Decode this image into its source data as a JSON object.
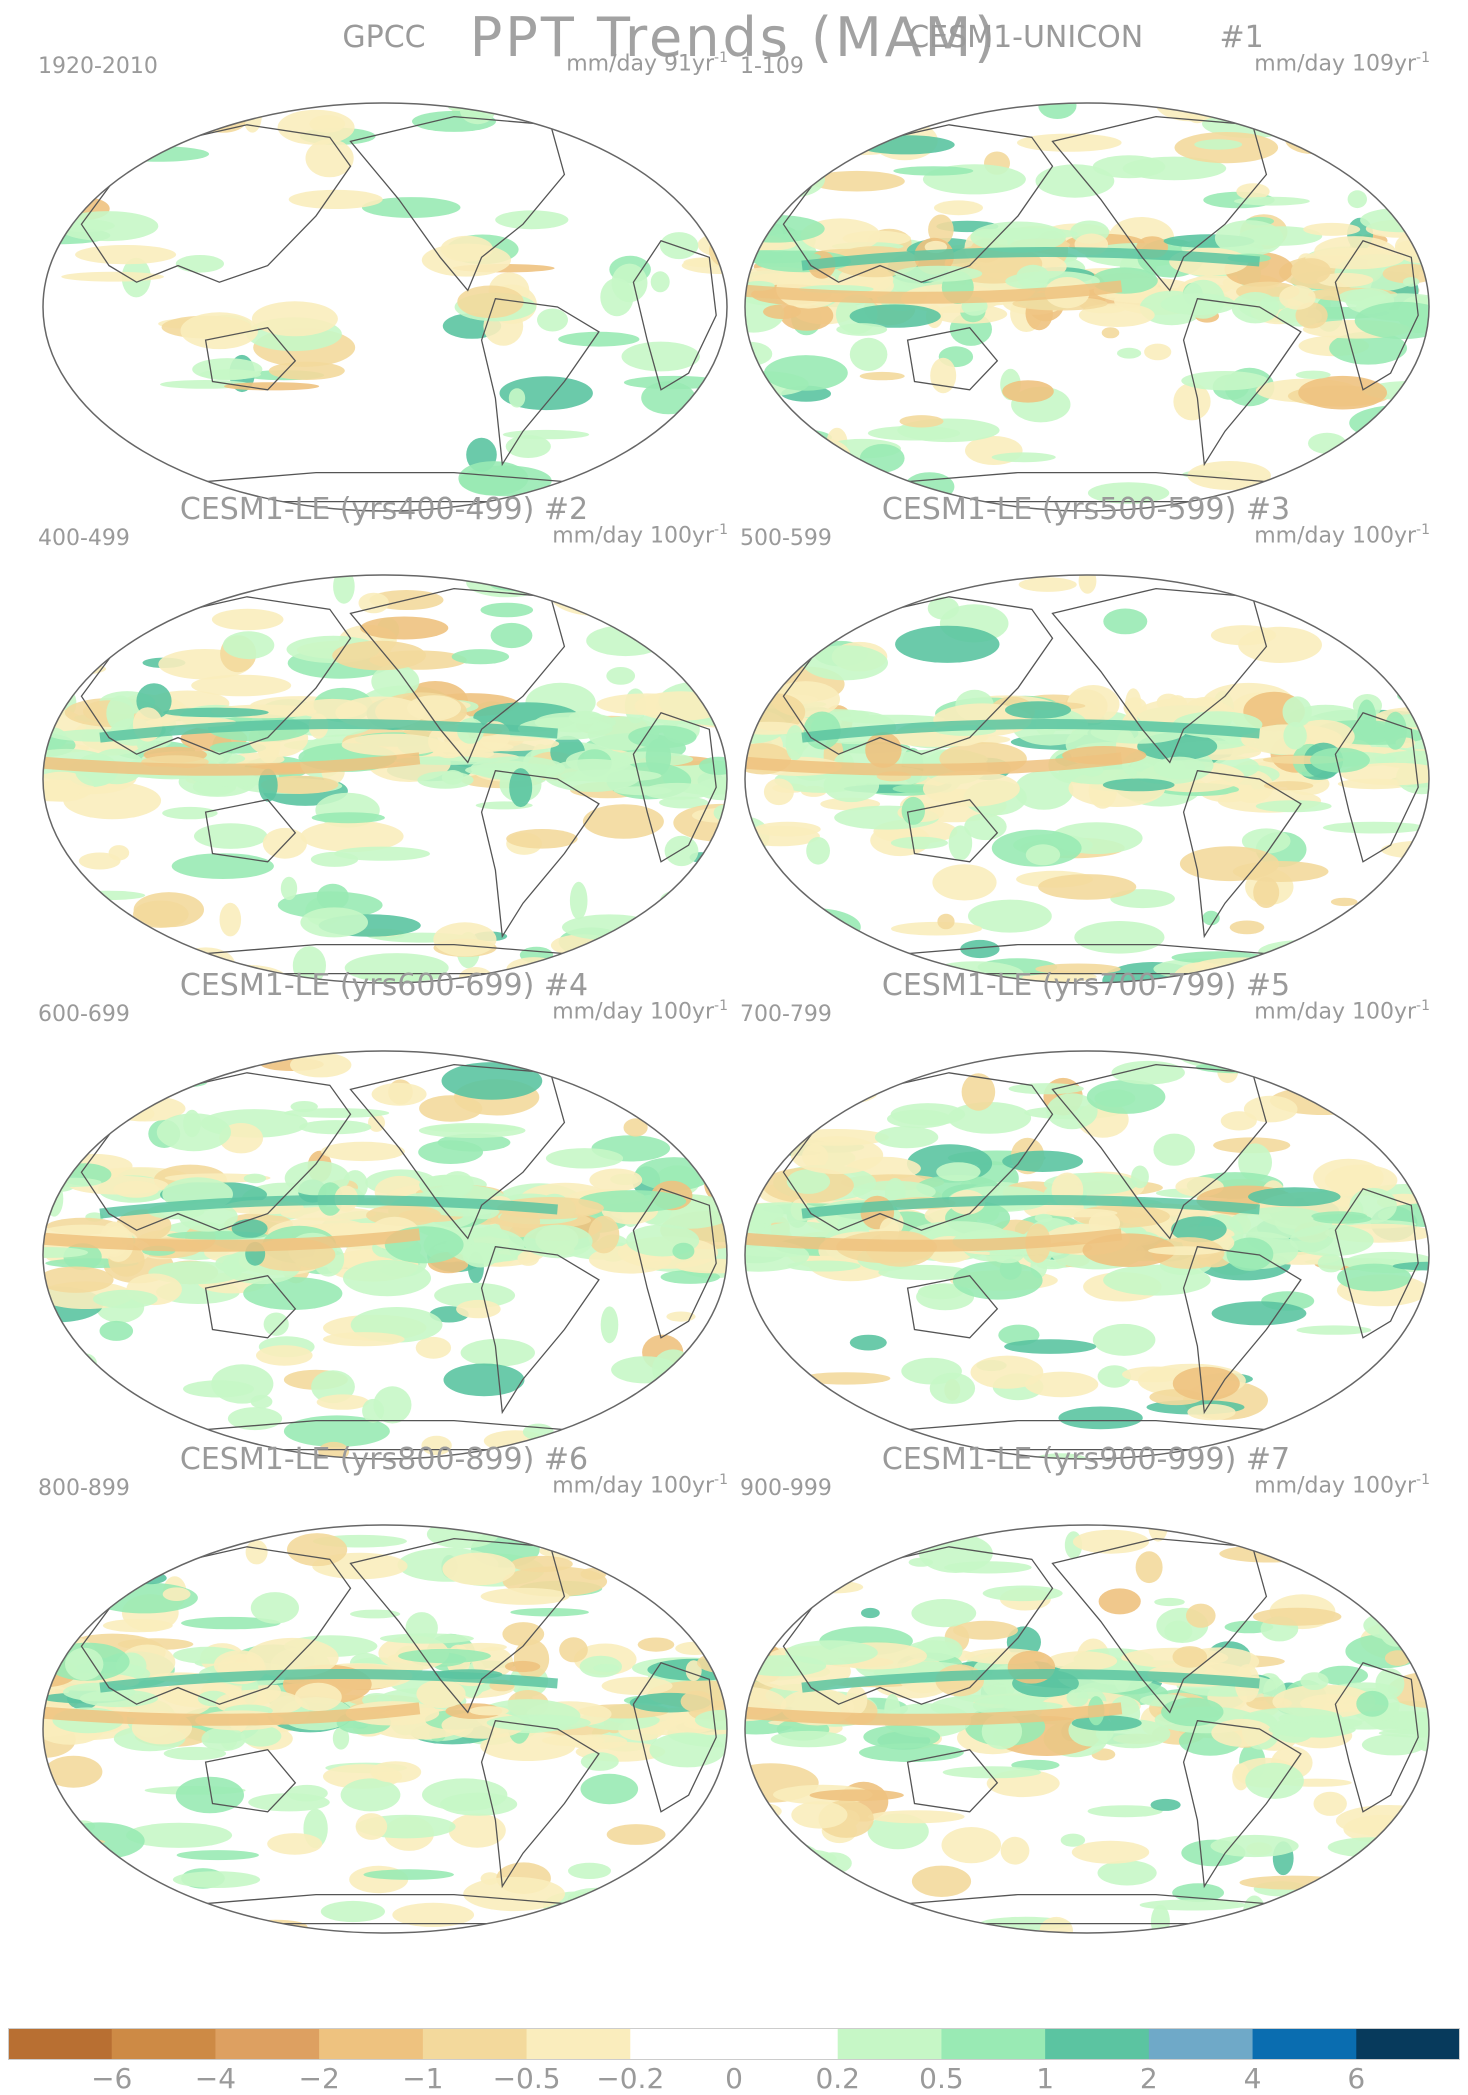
{
  "title": "PPT Trends (MAM)",
  "units_label": "mm/day",
  "panels": [
    {
      "title": "GPCC",
      "run_tag": "",
      "years": "1920-2010",
      "period": "91yr",
      "period_exp": "-1",
      "kind": "obs"
    },
    {
      "title": "CESM1-UNICON",
      "run_tag": "#1",
      "years": "1-109",
      "period": "109yr",
      "period_exp": "-1",
      "kind": "model"
    },
    {
      "title": "CESM1-LE (yrs400-499)",
      "run_tag": "#2",
      "years": "400-499",
      "period": "100yr",
      "period_exp": "-1",
      "kind": "model"
    },
    {
      "title": "CESM1-LE (yrs500-599)",
      "run_tag": "#3",
      "years": "500-599",
      "period": "100yr",
      "period_exp": "-1",
      "kind": "model"
    },
    {
      "title": "CESM1-LE (yrs600-699)",
      "run_tag": "#4",
      "years": "600-699",
      "period": "100yr",
      "period_exp": "-1",
      "kind": "model"
    },
    {
      "title": "CESM1-LE (yrs700-799)",
      "run_tag": "#5",
      "years": "700-799",
      "period": "100yr",
      "period_exp": "-1",
      "kind": "model"
    },
    {
      "title": "CESM1-LE (yrs800-899)",
      "run_tag": "#6",
      "years": "800-899",
      "period": "100yr",
      "period_exp": "-1",
      "kind": "model"
    },
    {
      "title": "CESM1-LE (yrs900-999)",
      "run_tag": "#7",
      "years": "900-999",
      "period": "100yr",
      "period_exp": "-1",
      "kind": "model"
    }
  ],
  "colorbar": {
    "colors": [
      "#b86f32",
      "#cd8a45",
      "#dda061",
      "#eec27f",
      "#f3d99c",
      "#faedbd",
      "#ffffff",
      "#ffffff",
      "#c6f7c6",
      "#99eab4",
      "#5bc4a1",
      "#6fa9c8",
      "#0a6db0",
      "#073a5c"
    ],
    "labels": [
      "-6",
      "-4",
      "-2",
      "-1",
      "-0.5",
      "-0.2",
      "0",
      "0.2",
      "0.5",
      "1",
      "2",
      "4",
      "6"
    ]
  }
}
